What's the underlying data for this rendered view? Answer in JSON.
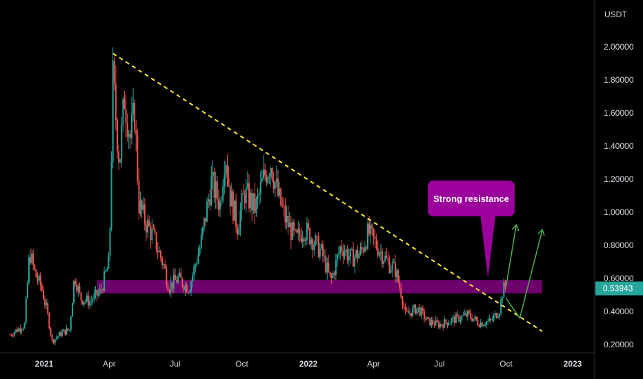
{
  "chart_data": {
    "type": "candlestick",
    "currency_label": "USDT",
    "y_range": [
      0.2,
      2.05
    ],
    "y_ticks": [
      {
        "value": 2.0,
        "label": "2.00000"
      },
      {
        "value": 1.8,
        "label": "1.80000"
      },
      {
        "value": 1.6,
        "label": "1.60000"
      },
      {
        "value": 1.4,
        "label": "1.40000"
      },
      {
        "value": 1.2,
        "label": "1.20000"
      },
      {
        "value": 1.0,
        "label": "1.00000"
      },
      {
        "value": 0.8,
        "label": "0.80000"
      },
      {
        "value": 0.6,
        "label": "0.60000"
      },
      {
        "value": 0.4,
        "label": "0.40000"
      },
      {
        "value": 0.2,
        "label": "0.20000"
      }
    ],
    "x_range": [
      "2020-11-15",
      "2023-02-10"
    ],
    "x_ticks": [
      {
        "date": "2021-01-01",
        "label": "2021",
        "bold": true
      },
      {
        "date": "2021-04-01",
        "label": "Apr",
        "bold": false
      },
      {
        "date": "2021-07-01",
        "label": "Jul",
        "bold": false
      },
      {
        "date": "2021-10-01",
        "label": "Oct",
        "bold": false
      },
      {
        "date": "2022-01-01",
        "label": "2022",
        "bold": true
      },
      {
        "date": "2022-04-01",
        "label": "Apr",
        "bold": false
      },
      {
        "date": "2022-07-01",
        "label": "Jul",
        "bold": false
      },
      {
        "date": "2022-10-01",
        "label": "Oct",
        "bold": false
      },
      {
        "date": "2023-01-01",
        "label": "2023",
        "bold": true
      }
    ],
    "price_path": [
      [
        "2020-11-15",
        0.26
      ],
      [
        "2020-12-05",
        0.32
      ],
      [
        "2020-12-12",
        0.76
      ],
      [
        "2020-12-20",
        0.62
      ],
      [
        "2020-12-28",
        0.55
      ],
      [
        "2021-01-05",
        0.4
      ],
      [
        "2021-01-12",
        0.22
      ],
      [
        "2021-01-25",
        0.27
      ],
      [
        "2021-02-05",
        0.29
      ],
      [
        "2021-02-12",
        0.62
      ],
      [
        "2021-02-20",
        0.48
      ],
      [
        "2021-03-05",
        0.46
      ],
      [
        "2021-03-20",
        0.52
      ],
      [
        "2021-04-01",
        0.7
      ],
      [
        "2021-04-06",
        1.8
      ],
      [
        "2021-04-15",
        1.3
      ],
      [
        "2021-04-22",
        1.7
      ],
      [
        "2021-04-30",
        1.45
      ],
      [
        "2021-05-06",
        1.6
      ],
      [
        "2021-05-12",
        1.05
      ],
      [
        "2021-05-20",
        0.95
      ],
      [
        "2021-06-01",
        0.85
      ],
      [
        "2021-06-15",
        0.68
      ],
      [
        "2021-06-22",
        0.55
      ],
      [
        "2021-07-05",
        0.6
      ],
      [
        "2021-07-20",
        0.54
      ],
      [
        "2021-08-05",
        0.8
      ],
      [
        "2021-08-20",
        1.18
      ],
      [
        "2021-09-01",
        1.05
      ],
      [
        "2021-09-08",
        1.38
      ],
      [
        "2021-09-15",
        1.1
      ],
      [
        "2021-09-25",
        0.92
      ],
      [
        "2021-10-05",
        1.12
      ],
      [
        "2021-10-20",
        1.02
      ],
      [
        "2021-11-01",
        1.22
      ],
      [
        "2021-11-10",
        1.3
      ],
      [
        "2021-11-20",
        1.1
      ],
      [
        "2021-12-01",
        0.95
      ],
      [
        "2021-12-15",
        0.83
      ],
      [
        "2021-12-25",
        0.9
      ],
      [
        "2022-01-05",
        0.85
      ],
      [
        "2022-01-20",
        0.75
      ],
      [
        "2022-02-01",
        0.58
      ],
      [
        "2022-02-15",
        0.8
      ],
      [
        "2022-03-01",
        0.72
      ],
      [
        "2022-03-15",
        0.76
      ],
      [
        "2022-03-25",
        0.88
      ],
      [
        "2022-04-05",
        0.8
      ],
      [
        "2022-04-20",
        0.7
      ],
      [
        "2022-05-01",
        0.65
      ],
      [
        "2022-05-10",
        0.5
      ],
      [
        "2022-05-15",
        0.38
      ],
      [
        "2022-06-01",
        0.42
      ],
      [
        "2022-06-15",
        0.34
      ],
      [
        "2022-07-01",
        0.32
      ],
      [
        "2022-07-20",
        0.35
      ],
      [
        "2022-08-10",
        0.38
      ],
      [
        "2022-08-25",
        0.33
      ],
      [
        "2022-09-10",
        0.34
      ],
      [
        "2022-09-22",
        0.41
      ],
      [
        "2022-09-27",
        0.54
      ],
      [
        "2022-09-30",
        0.5394
      ]
    ],
    "resistance_zone": {
      "from": "2021-03-15",
      "to": "2022-11-20",
      "low": 0.51,
      "high": 0.59,
      "color": "#800080"
    },
    "trendline": {
      "from": [
        "2021-04-06",
        1.96
      ],
      "to": [
        "2022-11-20",
        0.28
      ],
      "color": "#ffeb3b",
      "dashed": true
    },
    "projection_arrows": [
      {
        "points": [
          [
            "2022-10-01",
            0.55
          ],
          [
            "2022-10-15",
            0.92
          ]
        ]
      },
      {
        "points": [
          [
            "2022-10-01",
            0.48
          ],
          [
            "2022-10-20",
            0.36
          ],
          [
            "2022-11-20",
            0.89
          ]
        ]
      }
    ],
    "callout": {
      "text": "Strong resistance",
      "pointer_date": "2022-09-06",
      "pointer_value": 0.6,
      "color": "#9c009c"
    },
    "last_price": {
      "value": 0.5394,
      "label": "0.53943",
      "color": "#26a69a"
    },
    "colors": {
      "up": "#26a69a",
      "down": "#ef5350",
      "arrow": "#4caf50",
      "text": "#d1d4dc",
      "background": "#000000"
    }
  }
}
